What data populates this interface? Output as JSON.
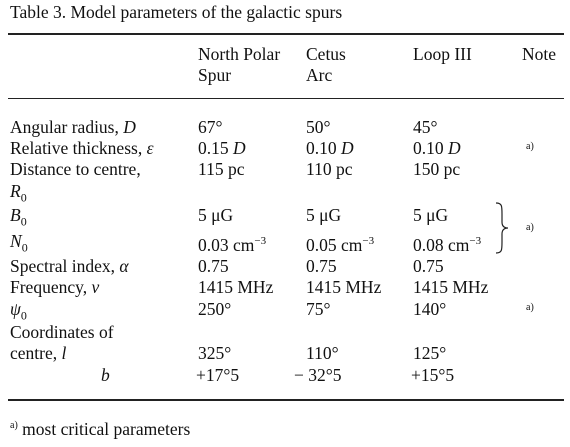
{
  "caption": "Table 3. Model parameters of the galactic spurs",
  "columns": {
    "c1a": "North Polar",
    "c1b": "Spur",
    "c2a": "Cetus",
    "c2b": "Arc",
    "c3a": "Loop III",
    "c4a": "Note"
  },
  "rows": [
    {
      "label": "Angular radius, ",
      "sym": "D",
      "v1": "67°",
      "v2": "50°",
      "v3": "45°",
      "note": ""
    },
    {
      "label": "Relative thickness, ",
      "sym": "ε",
      "v1": "0.15 ",
      "u1": "D",
      "v2": "0.10 ",
      "u2": "D",
      "v3": "0.10 ",
      "u3": "D",
      "note": "a)"
    },
    {
      "label": "Distance to centre,",
      "sym": "",
      "v1": "115 pc",
      "v2": "110 pc",
      "v3": "150 pc",
      "note": ""
    },
    {
      "label": "R",
      "sub": "0"
    },
    {
      "label": "B",
      "sub": "0",
      "v1": "5 μG",
      "v2": "5 μG",
      "v3": "5 μG"
    },
    {
      "label": "N",
      "sub": "0",
      "v1": "0.03 cm",
      "v2": "0.05 cm",
      "v3": "0.08 cm",
      "exp": "−3",
      "note": "a)"
    },
    {
      "label": "Spectral index, ",
      "sym": "α",
      "v1": "0.75",
      "v2": "0.75",
      "v3": "0.75"
    },
    {
      "label": "Frequency, ",
      "sym": "ν",
      "v1": "1415 MHz",
      "v2": "1415 MHz",
      "v3": "1415 MHz"
    },
    {
      "label": "ψ",
      "sub": "0",
      "v1": "250°",
      "v2": "75°",
      "v3": "140°",
      "note": "a)"
    },
    {
      "label": "Coordinates of"
    },
    {
      "label": "centre, ",
      "sym": "l",
      "v1": "325°",
      "v2": "110°",
      "v3": "125°"
    },
    {
      "label": "",
      "sym": "b",
      "v1": "+17°5",
      "v2": "− 32°5",
      "v3": "+15°5"
    }
  ],
  "footnote": {
    "mark": "a)",
    "text": " most critical parameters"
  }
}
